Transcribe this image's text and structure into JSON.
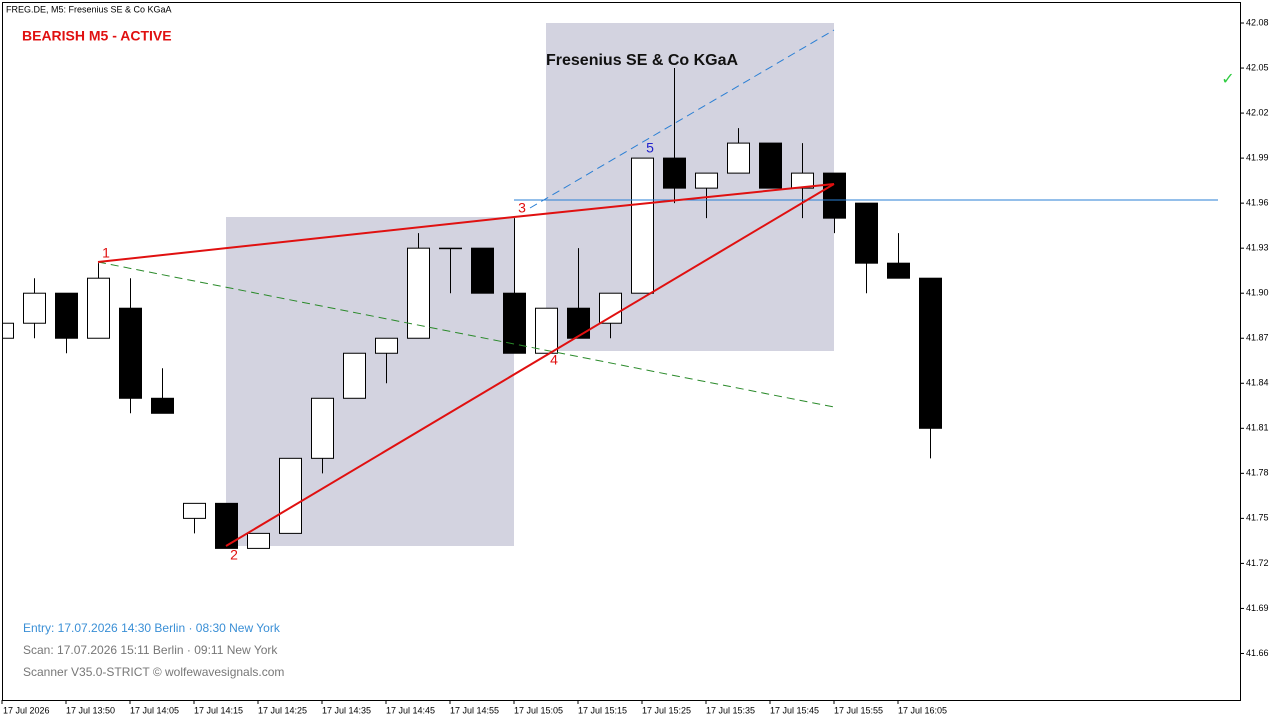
{
  "chart_data": {
    "type": "candlestick",
    "header": "FREG.DE, M5:  Fresenius SE & Co KGaA",
    "status": "BEARISH M5 - ACTIVE",
    "title": "Fresenius SE & Co KGaA",
    "check": "✓",
    "wave_labels": [
      "1",
      "2",
      "3",
      "4",
      "5"
    ],
    "footer": [
      "Entry: 17.07.2026  14:30 Berlin · 08:30 New York",
      "Scan:  17.07.2026  15:11 Berlin · 09:11 New York",
      "Scanner V35.0-STRICT  © wolfewavesignals.com"
    ],
    "categories": [
      "17 Jul 2026",
      null,
      "17 Jul 13:50",
      null,
      "17 Jul 14:05",
      null,
      "17 Jul 14:15",
      null,
      "17 Jul 14:25",
      null,
      "17 Jul 14:35",
      null,
      "17 Jul 14:45",
      null,
      "17 Jul 14:55",
      null,
      "17 Jul 15:05",
      null,
      "17 Jul 15:15",
      null,
      "17 Jul 15:25",
      null,
      "17 Jul 15:35",
      null,
      "17 Jul 15:45",
      null,
      "17 Jul 15:55",
      null,
      "17 Jul 16:05",
      null
    ],
    "open": [
      41.87,
      41.88,
      41.9,
      41.87,
      41.89,
      41.83,
      41.75,
      41.76,
      41.73,
      41.74,
      41.79,
      41.83,
      41.86,
      41.87,
      41.93,
      41.93,
      41.9,
      41.86,
      41.89,
      41.88,
      41.9,
      41.99,
      41.97,
      41.98,
      42.0,
      41.97,
      41.98,
      41.96,
      41.92,
      41.91
    ],
    "high": [
      41.88,
      41.91,
      41.9,
      41.92,
      41.91,
      41.85,
      41.76,
      41.76,
      41.74,
      41.79,
      41.83,
      41.86,
      41.87,
      41.94,
      41.93,
      41.93,
      41.95,
      41.89,
      41.93,
      41.9,
      41.99,
      42.05,
      41.98,
      42.01,
      42.0,
      42.0,
      41.98,
      41.96,
      41.94,
      41.91
    ],
    "low": [
      41.87,
      41.87,
      41.86,
      41.87,
      41.82,
      41.82,
      41.74,
      41.73,
      41.73,
      41.74,
      41.78,
      41.83,
      41.84,
      41.87,
      41.9,
      41.9,
      41.86,
      41.86,
      41.87,
      41.87,
      41.9,
      41.96,
      41.95,
      41.98,
      41.97,
      41.95,
      41.94,
      41.9,
      41.91,
      41.79
    ],
    "close": [
      41.88,
      41.9,
      41.87,
      41.91,
      41.83,
      41.82,
      41.76,
      41.73,
      41.74,
      41.79,
      41.83,
      41.86,
      41.87,
      41.93,
      41.93,
      41.9,
      41.86,
      41.89,
      41.87,
      41.9,
      41.99,
      41.97,
      41.98,
      42.0,
      41.97,
      41.98,
      41.95,
      41.92,
      41.91,
      41.81
    ],
    "ylim": [
      41.629,
      42.094
    ],
    "yticks": [
      42.08,
      42.05,
      42.02,
      41.99,
      41.96,
      41.93,
      {
        "value": 41.9,
        "label": "41.90"
      },
      41.87,
      41.84,
      41.81,
      41.78,
      41.75,
      41.72,
      41.69,
      41.66
    ],
    "up_color": "#ffffff",
    "down_color": "#000000"
  }
}
